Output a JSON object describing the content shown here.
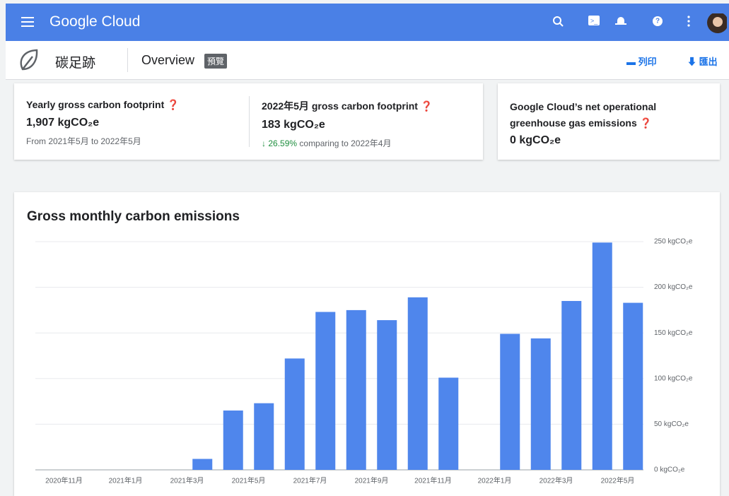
{
  "header": {
    "product": "Google Cloud"
  },
  "page": {
    "title": "碳足跡",
    "tab": "Overview",
    "badge": "預覽",
    "actions": [
      "列印",
      "匯出"
    ]
  },
  "cards": [
    {
      "title": "Yearly gross carbon footprint",
      "value": "1,907 kgCO₂e",
      "note": "From 2021年5月 to 2022年5月"
    },
    {
      "title": "2022年5月 gross carbon footprint",
      "value": "183 kgCO₂e",
      "change": "26.59%",
      "note": "comparing to 2022年4月"
    },
    {
      "title": "Google Cloud’s net operational greenhouse gas emissions",
      "value": "0 kgCO₂e"
    }
  ],
  "chart_data": {
    "type": "bar",
    "title": "Gross monthly carbon emissions",
    "categories": [
      null,
      "2020年11月",
      null,
      "2021年1月",
      null,
      "2021年3月",
      null,
      "2021年5月",
      null,
      "2021年7月",
      null,
      "2021年9月",
      null,
      "2021年11月",
      null,
      "2022年1月",
      null,
      "2022年3月",
      null,
      "2022年5月"
    ],
    "values": [
      0,
      0,
      0,
      0,
      0,
      12,
      65,
      73,
      122,
      173,
      175,
      164,
      189,
      101,
      0,
      149,
      144,
      185,
      249,
      183
    ],
    "color": "#4f86ec",
    "ylim": [
      0,
      250
    ],
    "yticks": [
      {
        "value": 0,
        "label": "0 kgCO₂e"
      },
      {
        "value": 50,
        "label": "50 kgCO₂e"
      },
      {
        "value": 100,
        "label": "100 kgCO₂e"
      },
      {
        "value": 150,
        "label": "150 kgCO₂e"
      },
      {
        "value": 200,
        "label": "200 kgCO₂e"
      },
      {
        "value": 250,
        "label": "250 kgCO₂e"
      }
    ],
    "grid": true
  }
}
